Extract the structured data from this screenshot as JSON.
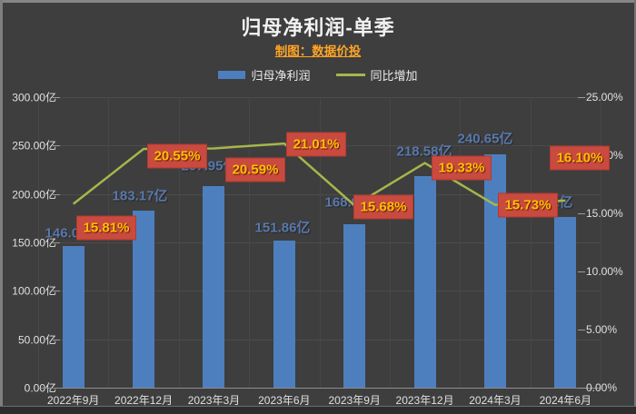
{
  "header": {
    "title": "归母净利润-单季",
    "subtitle": "制图：数据价投"
  },
  "legend": [
    {
      "label": "归母净利润",
      "swatch": "bar-swatch",
      "color": "#4d7fbe"
    },
    {
      "label": "同比增加",
      "swatch": "line-swatch",
      "color": "#a8b54b"
    }
  ],
  "colors": {
    "background": "#3e3e3e",
    "bar": "#4d7fbe",
    "line": "#a8b54b",
    "percent_box": "#c94a3e",
    "percent_text": "#ffc000",
    "bar_label_text": "#5878ab",
    "axis_text": "#e0e0e0",
    "title_text": "#f2f2f2",
    "subtitle_text": "#ffa426"
  },
  "chart_data": {
    "type": "bar+line combo",
    "title": "归母净利润-单季",
    "subtitle": "制图：数据价投",
    "grid": true,
    "legend_position": "top-center",
    "categories": [
      "2022年9月",
      "2022年12月",
      "2023年3月",
      "2023年6月",
      "2023年9月",
      "2023年12月",
      "2024年3月",
      "2024年6月"
    ],
    "series": [
      {
        "name": "归母净利润",
        "type": "bar",
        "axis": "left",
        "unit": "亿",
        "values": [
          146.06,
          183.17,
          207.95,
          151.86,
          168.96,
          218.58,
          240.65,
          176.31
        ],
        "labels": [
          "146.06亿",
          "183.17亿",
          "207.95亿",
          "151.86亿",
          "168.96亿",
          "218.58亿",
          "240.65亿",
          "176.31亿"
        ]
      },
      {
        "name": "同比增加",
        "type": "line",
        "axis": "right",
        "unit": "%",
        "values": [
          15.81,
          20.55,
          20.59,
          21.01,
          15.68,
          19.33,
          15.73,
          16.1
        ],
        "labels": [
          "15.81%",
          "20.55%",
          "20.59%",
          "21.01%",
          "15.68%",
          "19.33%",
          "15.73%",
          "16.10%"
        ]
      }
    ],
    "left_axis": {
      "min": 0,
      "max": 300,
      "tick_labels": [
        "300.00亿",
        "250.00亿",
        "200.00亿",
        "150.00亿",
        "100.00亿",
        "50.00亿",
        "0.00亿"
      ]
    },
    "right_axis": {
      "min": 0,
      "max": 25,
      "tick_labels": [
        "25.00%",
        "20.00%",
        "15.00%",
        "10.00%",
        "5.00%",
        "0.00%"
      ]
    }
  }
}
